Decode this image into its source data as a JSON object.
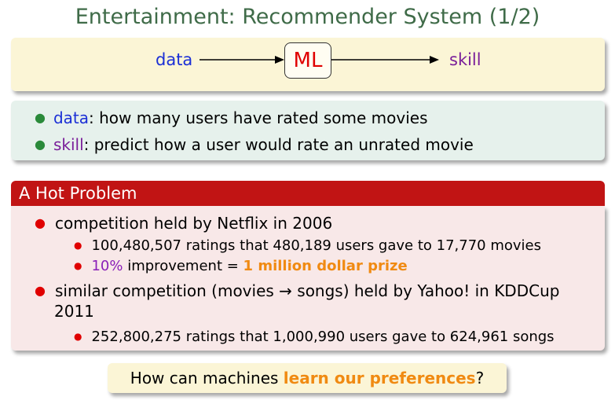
{
  "slide": {
    "title": "Entertainment: Recommender System (1/2)"
  },
  "flow": {
    "input": "data",
    "process": "ML",
    "output": "skill"
  },
  "definitions": [
    {
      "term": "data",
      "text": ": how many users have rated some movies"
    },
    {
      "term": "skill",
      "text": ": predict how a user would rate an unrated movie"
    }
  ],
  "hot_problem": {
    "header": "A Hot Problem",
    "item1": "competition held by Netflix in 2006",
    "item1_sub1": "100,480,507 ratings that 480,189 users gave to 17,770 movies",
    "item1_sub2_pct": "10%",
    "item1_sub2_mid": " improvement = ",
    "item1_sub2_prize": "1 million dollar prize",
    "item2_line1": "similar competition (movies → songs) held by Yahoo! in KDDCup",
    "item2_line2": "2011",
    "item2_sub1": "252,800,275 ratings that 1,000,990 users gave to 624,961 songs"
  },
  "question": {
    "before": "How can machines ",
    "highlight": "learn our preferences",
    "after": "?"
  }
}
